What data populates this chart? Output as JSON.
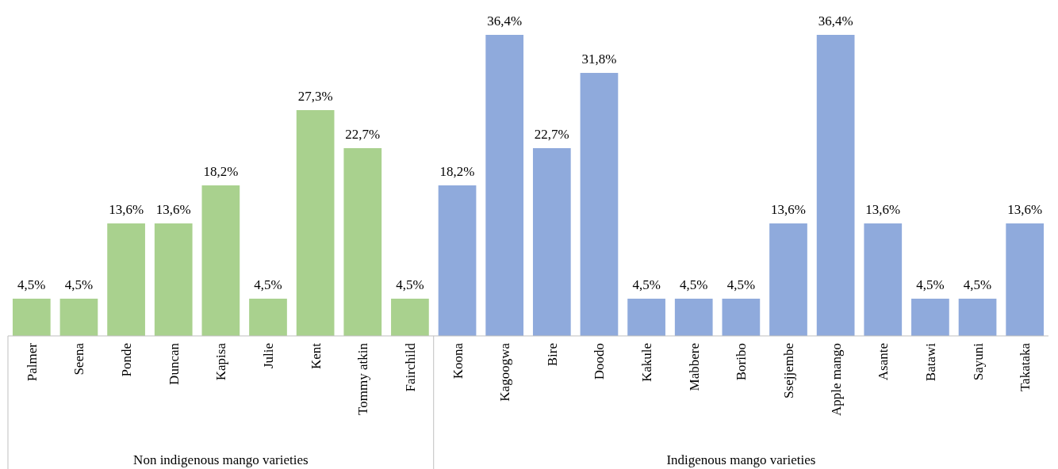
{
  "chart_data": {
    "type": "bar",
    "categories": [
      "Palmer",
      "Seena",
      "Ponde",
      "Duncan",
      "Kapisa",
      "Julie",
      "Kent",
      "Tommy atkin",
      "Fairchild",
      "Koona",
      "Kagoogwa",
      "Bire",
      "Doodo",
      "Kakule",
      "Mabbere",
      "Boribo",
      "Ssejjembe",
      "Apple mango",
      "Asante",
      "Batawi",
      "Sayuni",
      "Takataka"
    ],
    "values": [
      4.5,
      4.5,
      13.6,
      13.6,
      18.2,
      4.5,
      27.3,
      22.7,
      4.5,
      18.2,
      36.4,
      22.7,
      31.8,
      4.5,
      4.5,
      4.5,
      13.6,
      36.4,
      13.6,
      4.5,
      4.5,
      13.6
    ],
    "value_labels": [
      "4,5%",
      "4,5%",
      "13,6%",
      "13,6%",
      "18,2%",
      "4,5%",
      "27,3%",
      "22,7%",
      "4,5%",
      "18,2%",
      "36,4%",
      "22,7%",
      "31,8%",
      "4,5%",
      "4,5%",
      "4,5%",
      "13,6%",
      "36,4%",
      "13,6%",
      "4,5%",
      "4,5%",
      "13,6%"
    ],
    "colors": [
      "#a9d18e",
      "#a9d18e",
      "#a9d18e",
      "#a9d18e",
      "#a9d18e",
      "#a9d18e",
      "#a9d18e",
      "#a9d18e",
      "#a9d18e",
      "#8faadc",
      "#8faadc",
      "#8faadc",
      "#8faadc",
      "#8faadc",
      "#8faadc",
      "#8faadc",
      "#8faadc",
      "#8faadc",
      "#8faadc",
      "#8faadc",
      "#8faadc",
      "#8faadc"
    ],
    "annotations": [
      "Non indigenous mango varieties",
      "Indigenous mango varieties"
    ]
  }
}
